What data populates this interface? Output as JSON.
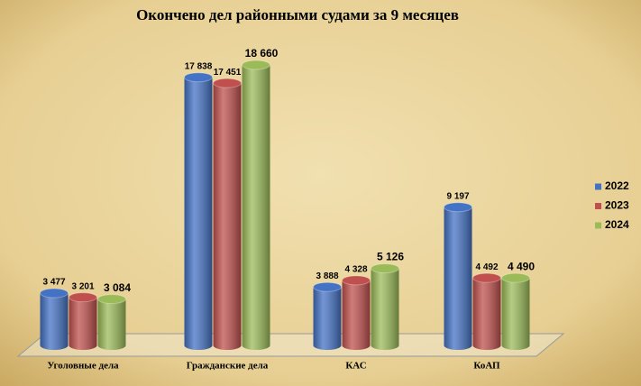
{
  "chart_data": {
    "type": "bar3d",
    "title": "Окончено дел районными судами за 9 месяцев",
    "categories": [
      "Уголовные дела",
      "Гражданские дела",
      "КАС",
      "КоАП"
    ],
    "series": [
      {
        "name": "2022",
        "color": "#4472c4",
        "values": [
          3477,
          17838,
          3888,
          9197
        ],
        "value_labels": [
          "3 477",
          "17 838",
          "3 888",
          "9 197"
        ]
      },
      {
        "name": "2023",
        "color": "#c0504d",
        "values": [
          3201,
          17451,
          4328,
          4492
        ],
        "value_labels": [
          "3 201",
          "17 451",
          "4 328",
          "4 492"
        ]
      },
      {
        "name": "2024",
        "color": "#9bbb59",
        "values": [
          3084,
          18660,
          5126,
          4490
        ],
        "value_labels": [
          "3 084",
          "18 660",
          "5 126",
          "4 490"
        ]
      }
    ],
    "legend": "right"
  }
}
